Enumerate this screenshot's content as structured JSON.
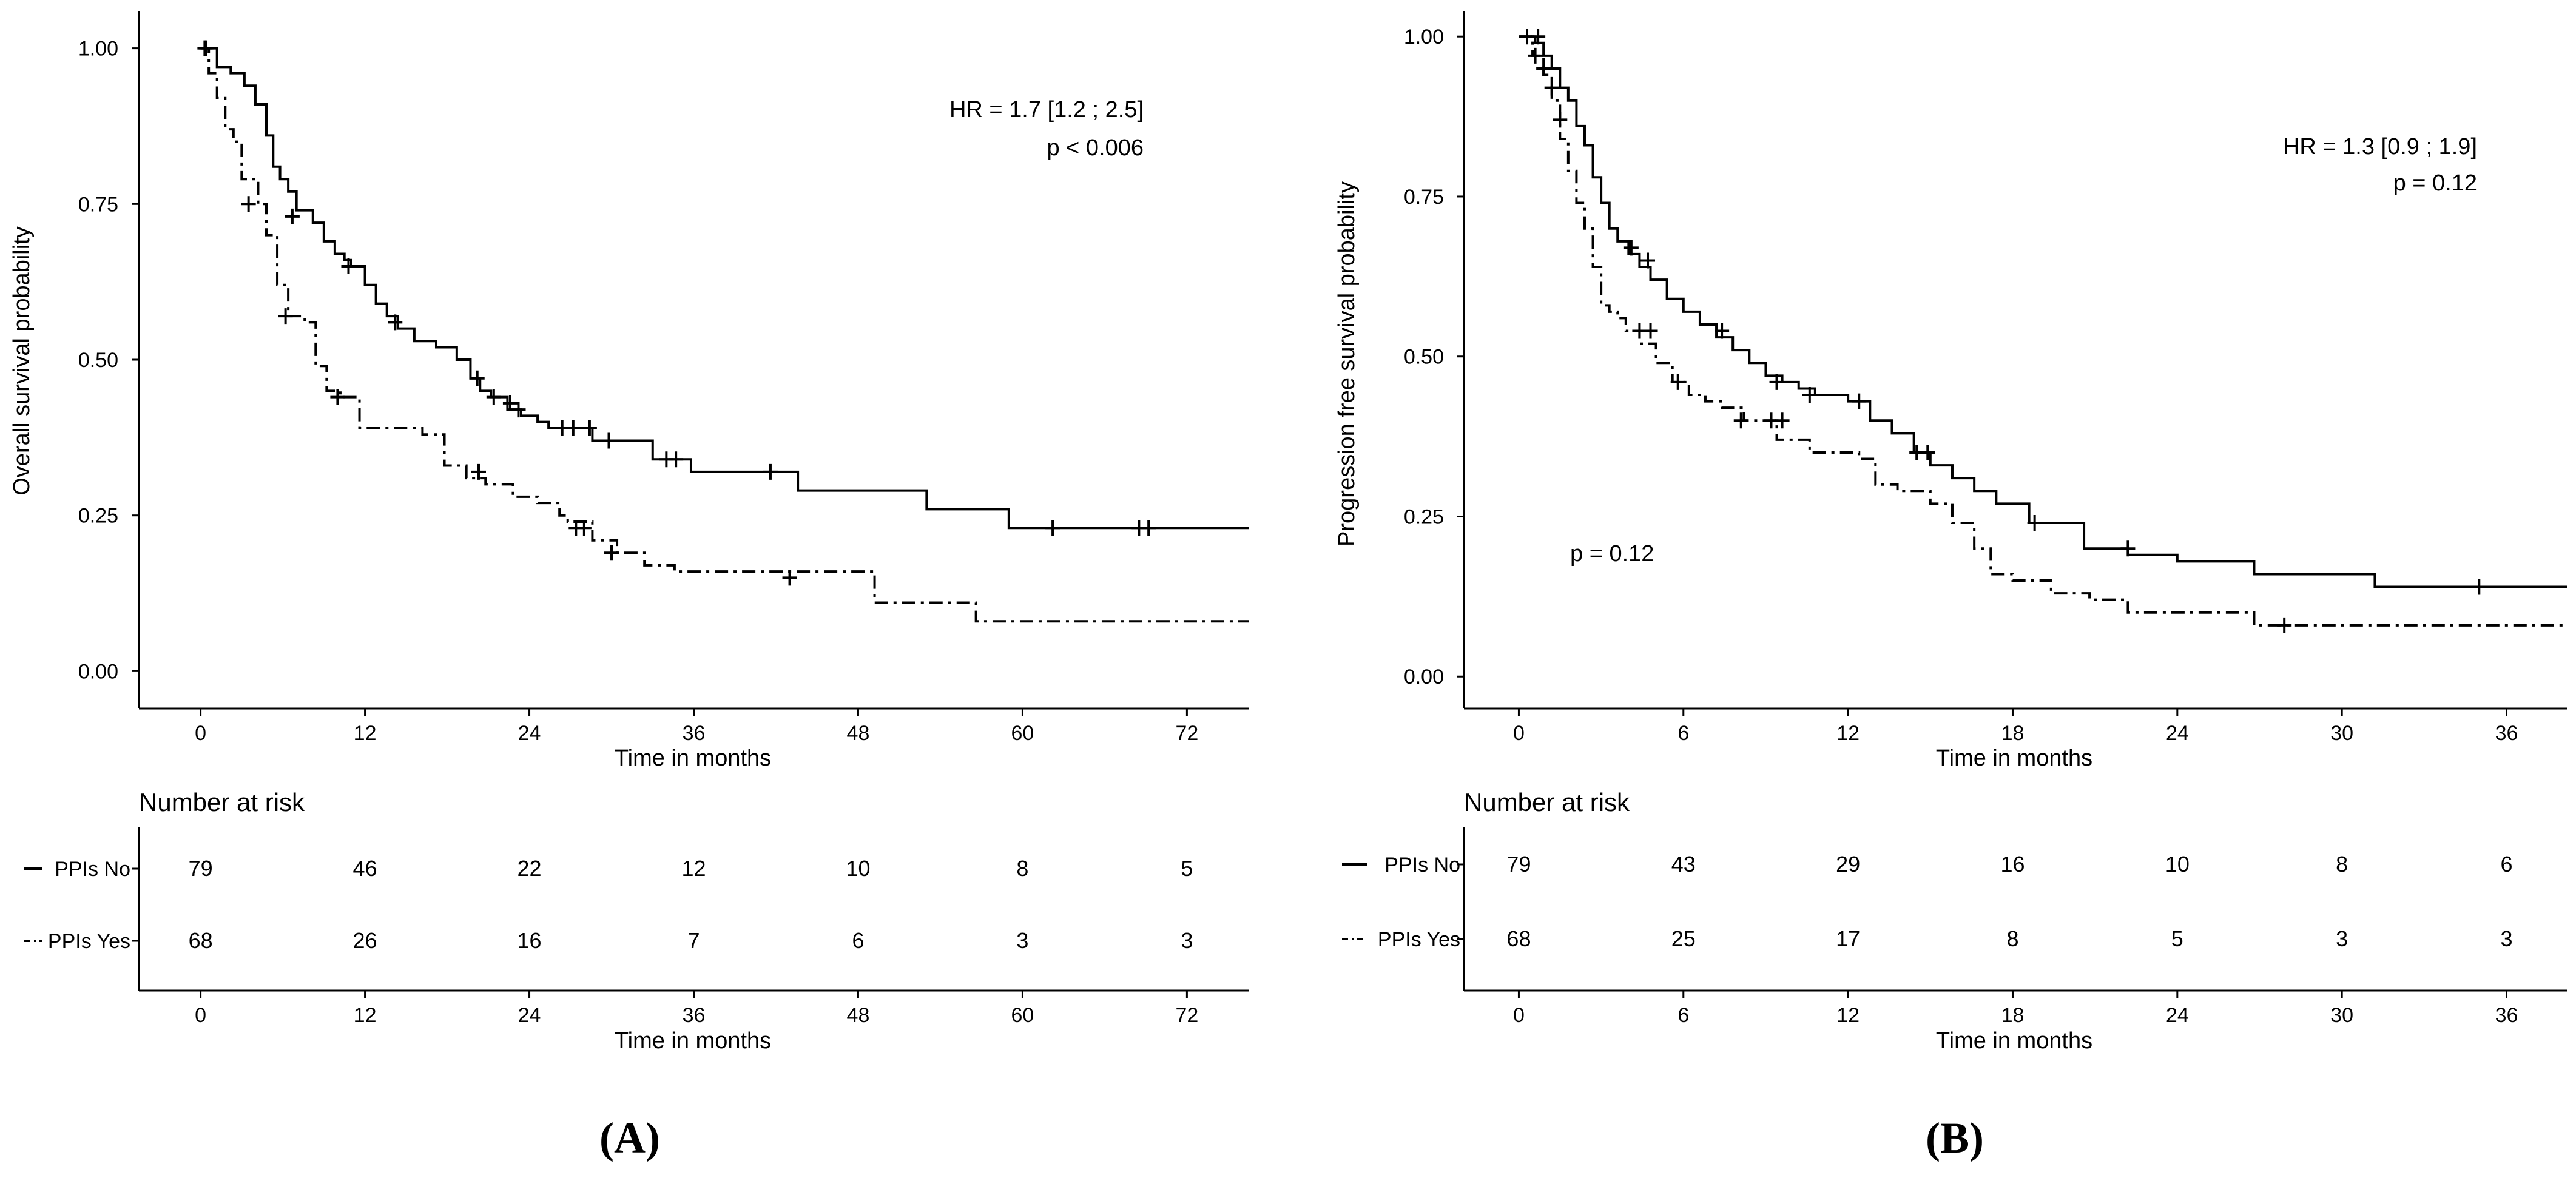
{
  "panels": [
    {
      "id": "A",
      "label": "(A)",
      "hr_text": "HR = 1.7 [1.2 ; 2.5]",
      "p_text": "p < 0.006",
      "p_extra": "",
      "risk_title": "Number at risk",
      "risk_rows": [
        {
          "label": "PPIs No",
          "values": [
            "79",
            "46",
            "22",
            "12",
            "10",
            "8",
            "5"
          ]
        },
        {
          "label": "PPIs Yes",
          "values": [
            "68",
            "26",
            "16",
            "7",
            "6",
            "3",
            "3"
          ]
        }
      ],
      "chart_data": {
        "type": "line",
        "chart_kind": "Kaplan-Meier step curve",
        "xlabel": "Time in months",
        "ylabel": "Overall survival probability",
        "xlim": [
          -4.5,
          76.5
        ],
        "ylim": [
          -0.06,
          1.06
        ],
        "xticks": [
          0,
          12,
          24,
          36,
          48,
          60,
          72
        ],
        "yticks": [
          0.0,
          0.25,
          0.5,
          0.75,
          1.0
        ],
        "ytick_labels": [
          "0.00",
          "0.25",
          "0.50",
          "0.75",
          "1.00"
        ],
        "series": [
          {
            "name": "PPIs No",
            "line_style": "solid",
            "x": [
              0,
              1.2,
              2.2,
              3.2,
              4.0,
              4.8,
              5.3,
              5.8,
              6.4,
              7.0,
              8.2,
              9.0,
              9.8,
              10.5,
              11.0,
              12.0,
              12.8,
              13.6,
              14.4,
              15.6,
              17.2,
              18.7,
              19.7,
              20.4,
              21.2,
              22.4,
              23.4,
              24.6,
              25.4,
              28.6,
              33.0,
              35.8,
              43.6,
              53.0,
              59.0,
              76.5
            ],
            "y": [
              1.0,
              0.97,
              0.96,
              0.94,
              0.91,
              0.86,
              0.81,
              0.79,
              0.77,
              0.74,
              0.72,
              0.69,
              0.67,
              0.66,
              0.65,
              0.62,
              0.59,
              0.57,
              0.55,
              0.53,
              0.52,
              0.5,
              0.47,
              0.45,
              0.44,
              0.42,
              0.41,
              0.4,
              0.39,
              0.37,
              0.34,
              0.32,
              0.29,
              0.26,
              0.23,
              0.23
            ],
            "censors_x": [
              0.4,
              6.7,
              10.8,
              14.2,
              20.2,
              21.4,
              22.6,
              23.2,
              26.4,
              27.2,
              28.4,
              29.8,
              34.0,
              34.7,
              41.6,
              62.2,
              68.5,
              69.2
            ],
            "censors_y": [
              1.0,
              0.73,
              0.65,
              0.56,
              0.47,
              0.44,
              0.43,
              0.42,
              0.39,
              0.39,
              0.39,
              0.37,
              0.34,
              0.34,
              0.32,
              0.23,
              0.23,
              0.23
            ]
          },
          {
            "name": "PPIs Yes",
            "line_style": "dash-dot",
            "x": [
              0,
              0.6,
              1.2,
              1.8,
              2.4,
              3.0,
              4.2,
              4.8,
              5.6,
              6.4,
              7.6,
              8.4,
              9.2,
              10.2,
              11.6,
              16.2,
              17.8,
              19.4,
              20.8,
              22.8,
              24.6,
              26.2,
              26.8,
              28.6,
              30.4,
              32.4,
              34.6,
              49.2,
              56.6,
              76.5
            ],
            "y": [
              1.0,
              0.96,
              0.92,
              0.87,
              0.85,
              0.79,
              0.75,
              0.7,
              0.62,
              0.57,
              0.56,
              0.49,
              0.45,
              0.44,
              0.39,
              0.38,
              0.33,
              0.31,
              0.3,
              0.28,
              0.27,
              0.25,
              0.24,
              0.21,
              0.19,
              0.17,
              0.16,
              0.11,
              0.08,
              0.08
            ],
            "censors_x": [
              0.3,
              3.5,
              6.2,
              10.0,
              20.3,
              27.4,
              28.0,
              30.0,
              43.0
            ],
            "censors_y": [
              1.0,
              0.75,
              0.57,
              0.44,
              0.32,
              0.23,
              0.23,
              0.19,
              0.15
            ]
          }
        ]
      },
      "risk_axis": {
        "xlabel": "Time in months",
        "xticks": [
          0,
          12,
          24,
          36,
          48,
          60,
          72
        ]
      }
    },
    {
      "id": "B",
      "label": "(B)",
      "hr_text": "HR = 1.3 [0.9 ; 1.9]",
      "p_text": "p = 0.12",
      "p_extra": "p = 0.12",
      "risk_title": "Number at risk",
      "risk_rows": [
        {
          "label": "PPIs No",
          "values": [
            "79",
            "43",
            "29",
            "16",
            "10",
            "8",
            "6"
          ]
        },
        {
          "label": "PPIs Yes",
          "values": [
            "68",
            "25",
            "17",
            "8",
            "5",
            "3",
            "3"
          ]
        }
      ],
      "chart_data": {
        "type": "line",
        "chart_kind": "Kaplan-Meier step curve",
        "xlabel": "Time in months",
        "ylabel": "Progression free survival probability",
        "xlim": [
          -2.0,
          38.2
        ],
        "ylim": [
          -0.05,
          1.04
        ],
        "xticks": [
          0,
          6,
          12,
          18,
          24,
          30,
          36
        ],
        "yticks": [
          0.0,
          0.25,
          0.5,
          0.75,
          1.0
        ],
        "ytick_labels": [
          "0.00",
          "0.25",
          "0.50",
          "0.75",
          "1.00"
        ],
        "series": [
          {
            "name": "PPIs No",
            "line_style": "solid",
            "x": [
              0,
              0.6,
              0.9,
              1.2,
              1.5,
              1.8,
              2.1,
              2.4,
              2.7,
              3.0,
              3.3,
              3.6,
              4.0,
              4.4,
              4.8,
              5.4,
              6.0,
              6.6,
              7.2,
              7.8,
              8.4,
              9.0,
              9.6,
              10.2,
              10.8,
              11.4,
              12.0,
              12.8,
              13.6,
              14.4,
              15.0,
              15.8,
              16.6,
              17.4,
              18.6,
              20.6,
              22.2,
              24.0,
              26.8,
              31.2,
              38.2
            ],
            "y": [
              1.0,
              0.99,
              0.97,
              0.95,
              0.92,
              0.9,
              0.86,
              0.83,
              0.78,
              0.74,
              0.7,
              0.68,
              0.66,
              0.64,
              0.62,
              0.59,
              0.57,
              0.55,
              0.53,
              0.51,
              0.49,
              0.47,
              0.46,
              0.45,
              0.44,
              0.44,
              0.43,
              0.4,
              0.38,
              0.35,
              0.33,
              0.31,
              0.29,
              0.27,
              0.24,
              0.2,
              0.19,
              0.18,
              0.16,
              0.14,
              0.14
            ],
            "censors_x": [
              0.3,
              0.7,
              4.1,
              4.7,
              7.4,
              9.4,
              10.6,
              12.4,
              14.5,
              14.9,
              18.8,
              22.2,
              35.0
            ],
            "censors_y": [
              1.0,
              1.0,
              0.67,
              0.65,
              0.54,
              0.46,
              0.44,
              0.43,
              0.35,
              0.35,
              0.24,
              0.2,
              0.14
            ]
          },
          {
            "name": "PPIs Yes",
            "line_style": "dash-dot",
            "x": [
              0,
              0.5,
              0.9,
              1.2,
              1.5,
              1.8,
              2.1,
              2.4,
              2.7,
              3.0,
              3.3,
              3.6,
              3.9,
              4.4,
              5.0,
              5.6,
              6.2,
              6.8,
              7.4,
              8.2,
              9.4,
              10.6,
              12.4,
              13.0,
              13.8,
              15.0,
              15.8,
              16.6,
              17.2,
              18.0,
              19.4,
              20.8,
              22.2,
              26.8,
              38.2
            ],
            "y": [
              1.0,
              0.97,
              0.94,
              0.9,
              0.84,
              0.79,
              0.74,
              0.7,
              0.64,
              0.58,
              0.57,
              0.56,
              0.54,
              0.52,
              0.49,
              0.46,
              0.44,
              0.43,
              0.42,
              0.4,
              0.37,
              0.35,
              0.34,
              0.3,
              0.29,
              0.27,
              0.24,
              0.2,
              0.16,
              0.15,
              0.13,
              0.12,
              0.1,
              0.08,
              0.08
            ],
            "censors_x": [
              0.6,
              0.9,
              1.2,
              1.5,
              4.4,
              4.8,
              5.8,
              8.1,
              9.2,
              9.6,
              27.9
            ],
            "censors_y": [
              0.97,
              0.95,
              0.92,
              0.87,
              0.54,
              0.54,
              0.46,
              0.4,
              0.4,
              0.4,
              0.08
            ]
          }
        ]
      },
      "risk_axis": {
        "xlabel": "Time in months",
        "xticks": [
          0,
          6,
          12,
          18,
          24,
          30,
          36
        ]
      }
    }
  ]
}
